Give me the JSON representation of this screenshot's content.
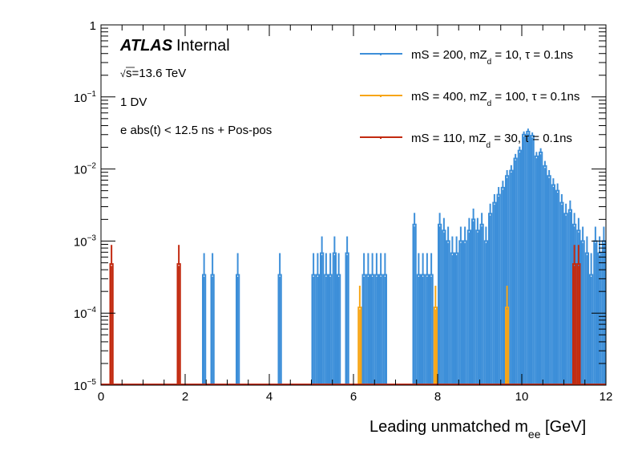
{
  "chart_data": {
    "type": "histogram",
    "title": "",
    "xlabel": "Leading unmatched m",
    "xlabel_sub": "ee",
    "xlabel_unit": " [GeV]",
    "ylabel": "",
    "xlim": [
      0,
      12
    ],
    "ylim": [
      1e-05,
      1
    ],
    "yscale": "log",
    "bin_width": 0.1,
    "x_ticks": [
      "0",
      "2",
      "4",
      "6",
      "8",
      "10",
      "12"
    ],
    "y_ticks": [
      {
        "base": "10",
        "exp": "−5"
      },
      {
        "base": "10",
        "exp": "−4"
      },
      {
        "base": "10",
        "exp": "−3"
      },
      {
        "base": "10",
        "exp": "−2"
      },
      {
        "base": "10",
        "exp": "−1"
      },
      {
        "base": "1",
        "exp": ""
      }
    ],
    "annotations": {
      "atlas": "ATLAS",
      "atlas_suffix": "Internal",
      "energy_sqrt": "√",
      "energy": "s=13.6 TeV",
      "selection1": "1 DV",
      "selection2": "e abs(t) < 12.5 ns + Pos-pos"
    },
    "legend_position": "top-right",
    "series": [
      {
        "name": "mS = 200, mZ_d = 10, τ = 0.1ns",
        "label_a": "mS = 200, mZ",
        "label_sub": "d",
        "label_b": " = 10, τ = 0.1ns",
        "color": "#3d8fd9",
        "bins": [
          [
            2.4,
            0.00034
          ],
          [
            2.6,
            0.00034
          ],
          [
            3.2,
            0.00034
          ],
          [
            4.2,
            0.00034
          ],
          [
            5.0,
            0.00034
          ],
          [
            5.1,
            0.00034
          ],
          [
            5.2,
            0.00068
          ],
          [
            5.3,
            0.00034
          ],
          [
            5.4,
            0.00034
          ],
          [
            5.5,
            0.00068
          ],
          [
            5.6,
            0.00034
          ],
          [
            5.8,
            0.00068
          ],
          [
            6.2,
            0.00034
          ],
          [
            6.3,
            0.00034
          ],
          [
            6.4,
            0.00034
          ],
          [
            6.5,
            0.00034
          ],
          [
            6.6,
            0.00034
          ],
          [
            6.7,
            0.00034
          ],
          [
            7.4,
            0.0017
          ],
          [
            7.5,
            0.00034
          ],
          [
            7.6,
            0.00034
          ],
          [
            7.7,
            0.00034
          ],
          [
            7.8,
            0.00034
          ],
          [
            8.0,
            0.0017
          ],
          [
            8.1,
            0.0014
          ],
          [
            8.2,
            0.001
          ],
          [
            8.3,
            0.00068
          ],
          [
            8.4,
            0.00068
          ],
          [
            8.5,
            0.001
          ],
          [
            8.6,
            0.001
          ],
          [
            8.7,
            0.0014
          ],
          [
            8.8,
            0.002
          ],
          [
            8.9,
            0.0014
          ],
          [
            9.0,
            0.0017
          ],
          [
            9.1,
            0.001
          ],
          [
            9.2,
            0.0024
          ],
          [
            9.3,
            0.0034
          ],
          [
            9.4,
            0.0044
          ],
          [
            9.5,
            0.0055
          ],
          [
            9.6,
            0.008
          ],
          [
            9.7,
            0.0095
          ],
          [
            9.8,
            0.014
          ],
          [
            9.9,
            0.018
          ],
          [
            10.0,
            0.03
          ],
          [
            10.1,
            0.033
          ],
          [
            10.2,
            0.029
          ],
          [
            10.3,
            0.015
          ],
          [
            10.4,
            0.017
          ],
          [
            10.5,
            0.011
          ],
          [
            10.6,
            0.008
          ],
          [
            10.7,
            0.006
          ],
          [
            10.8,
            0.005
          ],
          [
            10.9,
            0.0034
          ],
          [
            11.0,
            0.0024
          ],
          [
            11.1,
            0.0027
          ],
          [
            11.2,
            0.0017
          ],
          [
            11.3,
            0.0014
          ],
          [
            11.4,
            0.001
          ],
          [
            11.5,
            0.00068
          ],
          [
            11.6,
            0.00034
          ],
          [
            11.7,
            0.001
          ],
          [
            11.8,
            0.00068
          ],
          [
            11.9,
            0.001
          ]
        ]
      },
      {
        "name": "mS = 400, mZ_d = 100, τ = 0.1ns",
        "label_a": "mS = 400, mZ",
        "label_sub": "d",
        "label_b": " = 100, τ = 0.1ns",
        "color": "#f7a516",
        "bins": [
          [
            6.1,
            0.00012
          ],
          [
            7.9,
            0.00012
          ],
          [
            9.6,
            0.00012
          ],
          [
            11.3,
            0.00012
          ]
        ]
      },
      {
        "name": "mS = 110, mZ_d = 30, τ = 0.1ns",
        "label_a": "mS = 110, mZ",
        "label_sub": "d",
        "label_b": " = 30, τ = 0.1ns",
        "color": "#c22a10",
        "bins": [
          [
            0.2,
            0.00048
          ],
          [
            1.8,
            0.00048
          ],
          [
            11.2,
            0.00048
          ],
          [
            11.3,
            0.00048
          ]
        ]
      }
    ]
  }
}
